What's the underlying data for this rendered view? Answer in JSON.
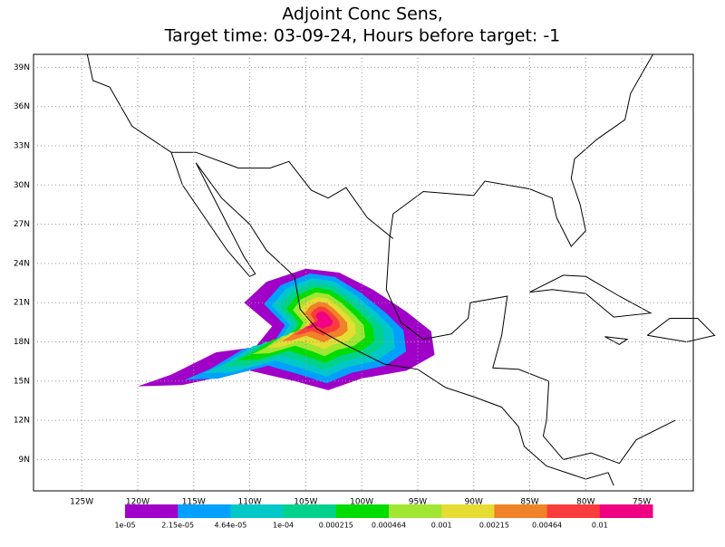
{
  "title": "Adjoint Conc Sens,",
  "subtitle": "Target time: 03-09-24, Hours before target: -1",
  "map": {
    "xlim": [
      -129.3,
      -70.4
    ],
    "ylim": [
      6.6,
      40
    ],
    "xticks": [
      {
        "value": -125,
        "label": "125W"
      },
      {
        "value": -120,
        "label": "120W"
      },
      {
        "value": -115,
        "label": "115W"
      },
      {
        "value": -110,
        "label": "110W"
      },
      {
        "value": -105,
        "label": "105W"
      },
      {
        "value": -100,
        "label": "100W"
      },
      {
        "value": -95,
        "label": "95W"
      },
      {
        "value": -90,
        "label": "90W"
      },
      {
        "value": -85,
        "label": "85W"
      },
      {
        "value": -80,
        "label": "80W"
      },
      {
        "value": -75,
        "label": "75W"
      }
    ],
    "yticks": [
      {
        "value": 39,
        "label": "39N"
      },
      {
        "value": 36,
        "label": "36N"
      },
      {
        "value": 33,
        "label": "33N"
      },
      {
        "value": 30,
        "label": "30N"
      },
      {
        "value": 27,
        "label": "27N"
      },
      {
        "value": 24,
        "label": "24N"
      },
      {
        "value": 21,
        "label": "21N"
      },
      {
        "value": 18,
        "label": "18N"
      },
      {
        "value": 15,
        "label": "15N"
      },
      {
        "value": 12,
        "label": "12N"
      },
      {
        "value": 9,
        "label": "9N"
      }
    ],
    "grid": true
  },
  "colorbar": {
    "colors": [
      "#a000c8",
      "#00a0ff",
      "#00c8c8",
      "#00d28c",
      "#00dc00",
      "#a0e632",
      "#e6dc32",
      "#f08228",
      "#fa3c3c",
      "#f00082"
    ],
    "labels": [
      "1e-05",
      "2.15e-05",
      "4.64e-05",
      "1e-04",
      "0.000215",
      "0.000464",
      "0.001",
      "0.00215",
      "0.00464",
      "0.01"
    ]
  }
}
